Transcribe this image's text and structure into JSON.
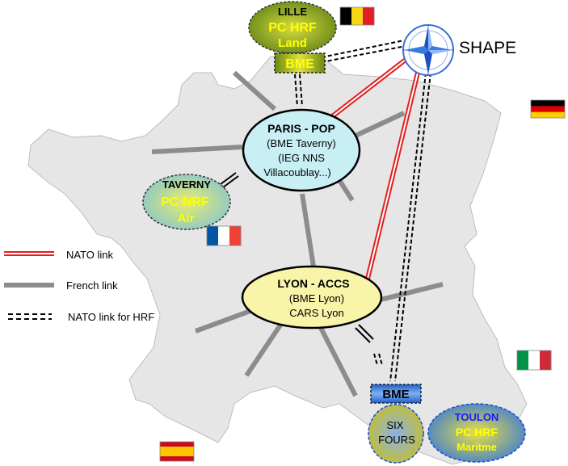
{
  "nodes": {
    "lille": {
      "lines": [
        "LILLE",
        "PC HRF",
        "Land"
      ]
    },
    "bme_north": {
      "label": "BME"
    },
    "shape": {
      "label": "SHAPE"
    },
    "paris": {
      "lines": [
        "PARIS - POP",
        "(BME Taverny)",
        "(IEG NNS",
        "Villacoublay...)"
      ]
    },
    "taverny": {
      "lines": [
        "TAVERNY",
        "PC NRF",
        "Air"
      ]
    },
    "lyon": {
      "lines": [
        "LYON - ACCS",
        "(BME Lyon)",
        "CARS Lyon"
      ]
    },
    "bme_south": {
      "label": "BME"
    },
    "six_fours": {
      "lines": [
        "SIX",
        "FOURS"
      ]
    },
    "toulon": {
      "lines": [
        "TOULON",
        "PC HRF",
        "Maritme"
      ]
    }
  },
  "legend": {
    "nato_link": "NATO link",
    "french_link": "French link",
    "nato_hrf_link": "NATO link for HRF"
  },
  "flags": {
    "belgium": [
      "#000000",
      "#f7d618",
      "#e01e25"
    ],
    "germany": [
      "#000000",
      "#dd0000",
      "#ffce00"
    ],
    "france": [
      "#0055a4",
      "#ffffff",
      "#ef4135"
    ],
    "italy": [
      "#009246",
      "#ffffff",
      "#ce2b37"
    ],
    "spain": [
      "#c60b1e",
      "#ffc400",
      "#c60b1e"
    ]
  },
  "colors": {
    "map_fill": "#e6e6e6",
    "nato_link": "#e02020",
    "french_link": "#8c8c8c",
    "paris_fill": "#c8f0f4",
    "lyon_fill": "#f8f4a8",
    "hrf_text_yellow": "#ffff00",
    "toulon_text": "#1a1aff"
  },
  "icons": {
    "shape": "compass-rose-icon"
  }
}
